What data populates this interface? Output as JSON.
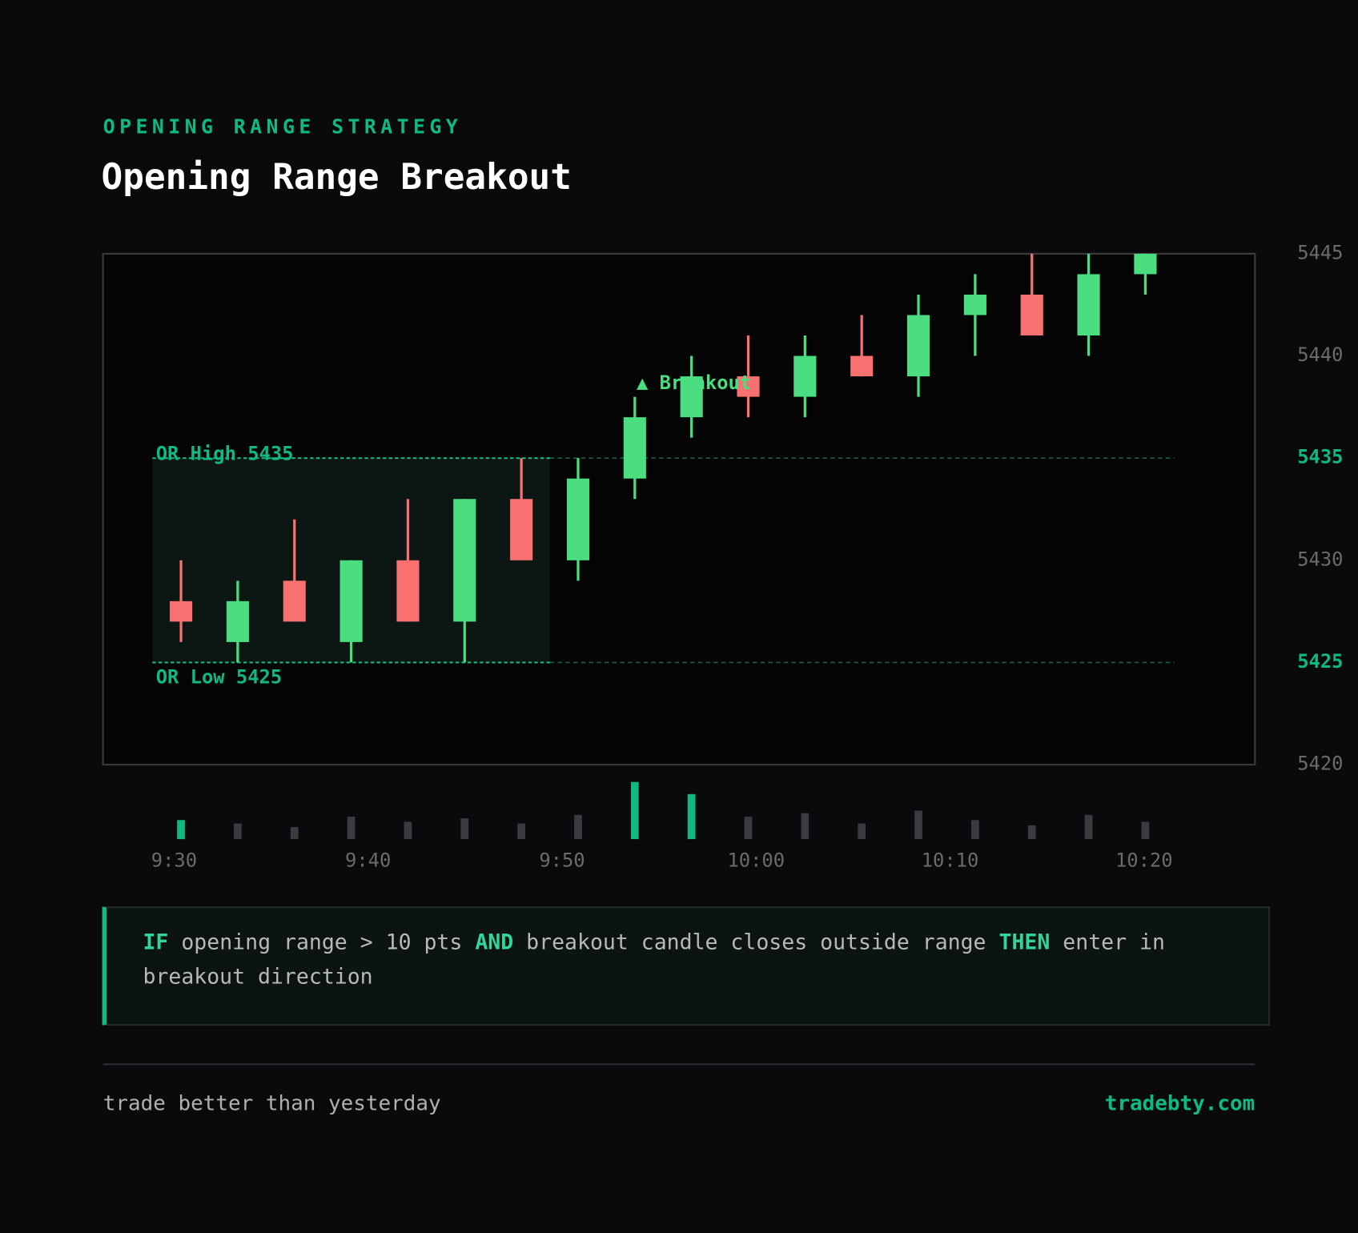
{
  "header": {
    "eyebrow": "OPENING RANGE STRATEGY",
    "title": "Opening Range Breakout"
  },
  "chart_data": {
    "type": "candlestick",
    "open": [
      5428,
      5426,
      5429,
      5426,
      5430,
      5427,
      5433,
      5430,
      5434,
      5437,
      5439,
      5438,
      5440,
      5439,
      5442,
      5443,
      5441,
      5444
    ],
    "close": [
      5427,
      5428,
      5427,
      5430,
      5427,
      5433,
      5430,
      5434,
      5437,
      5439,
      5438,
      5440,
      5439,
      5442,
      5443,
      5441,
      5444,
      5445
    ],
    "high": [
      5430,
      5429,
      5432,
      5430,
      5433,
      5433,
      5435,
      5435,
      5438,
      5440,
      5441,
      5441,
      5442,
      5443,
      5444,
      5445,
      5445,
      5445
    ],
    "low": [
      5426,
      5425,
      5427,
      5425,
      5427,
      5425,
      5430,
      5429,
      5433,
      5436,
      5437,
      5437,
      5439,
      5438,
      5440,
      5441,
      5440,
      5443
    ],
    "volume": [
      22,
      18,
      14,
      26,
      20,
      24,
      18,
      28,
      66,
      52,
      26,
      30,
      18,
      33,
      22,
      16,
      28,
      20
    ],
    "up_color": "#4ade80",
    "down_color": "#f87171",
    "volume_color": "#3a3a40",
    "volume_highlight_color": "#10b981",
    "x_labels": [
      "9:30",
      "9:40",
      "9:50",
      "10:00",
      "10:10",
      "10:20"
    ],
    "ylim": [
      5420,
      5445
    ],
    "yticks": [
      5420,
      5425,
      5430,
      5435,
      5440,
      5445
    ],
    "or_high": {
      "value": 5435,
      "label": "OR High 5435"
    },
    "or_low": {
      "value": 5425,
      "label": "OR Low 5425"
    },
    "breakout_label": "▲ Breakout"
  },
  "rule": [
    {
      "text": "IF",
      "keyword": true
    },
    {
      "text": "opening range > 10 pts",
      "keyword": false
    },
    {
      "text": "AND",
      "keyword": true
    },
    {
      "text": "breakout candle closes outside range",
      "keyword": false
    },
    {
      "text": "THEN",
      "keyword": true
    },
    {
      "text": "enter in breakout direction",
      "keyword": false
    }
  ],
  "footer": {
    "tagline": "trade better than yesterday",
    "site": "tradebty.com"
  }
}
